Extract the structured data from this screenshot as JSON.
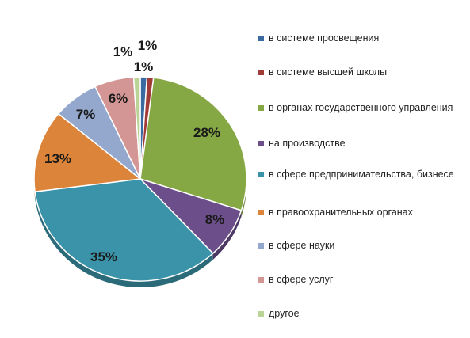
{
  "chart_data": {
    "type": "pie",
    "title": "",
    "slices": [
      {
        "label": "в системе просвещения",
        "value": 1,
        "value_label": "1%",
        "color": "#3B6AA0"
      },
      {
        "label": "в системе высшей школы",
        "value": 1,
        "value_label": "1%",
        "color": "#A03B38"
      },
      {
        "label": "в органах государственного управления",
        "value": 28,
        "value_label": "28%",
        "color": "#86A844"
      },
      {
        "label": "на производстве",
        "value": 8,
        "value_label": "8%",
        "color": "#6B4E8A"
      },
      {
        "label": "в сфере предпринимательства, бизнесе",
        "value": 35,
        "value_label": "35%",
        "color": "#3A93A8"
      },
      {
        "label": "в правоохранительных органах",
        "value": 13,
        "value_label": "13%",
        "color": "#DC843A"
      },
      {
        "label": "в сфере науки",
        "value": 7,
        "value_label": "7%",
        "color": "#94A8CE"
      },
      {
        "label": "в сфере услуг",
        "value": 6,
        "value_label": "6%",
        "color": "#D49695"
      },
      {
        "label": "другое",
        "value": 1,
        "value_label": "1%",
        "color": "#BCD398"
      }
    ],
    "legend_position": "right"
  }
}
